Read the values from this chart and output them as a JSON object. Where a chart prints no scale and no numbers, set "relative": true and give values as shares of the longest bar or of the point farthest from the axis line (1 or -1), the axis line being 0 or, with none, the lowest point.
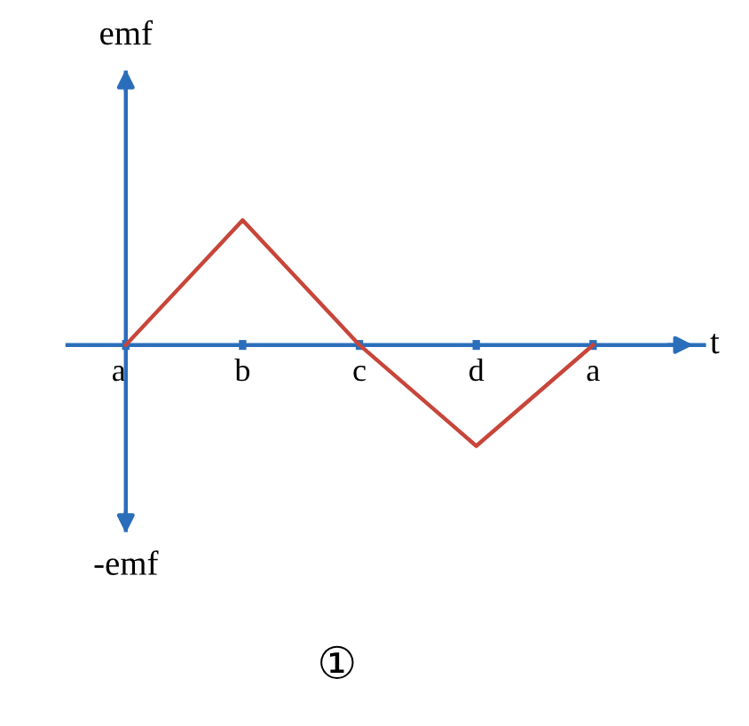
{
  "chart_data": {
    "type": "line",
    "relative": true,
    "categories": [
      "a",
      "b",
      "c",
      "d",
      "a"
    ],
    "series": [
      {
        "color": "#c8453a",
        "values": [
          0,
          1,
          0,
          -0.81,
          0
        ]
      }
    ],
    "xlabel": "t",
    "annotations": [
      "emf",
      "-emf",
      "①"
    ],
    "ref_lines": [
      {
        "axis": "x",
        "value": "a",
        "color": "#2a6ebb",
        "line_style": "solid"
      }
    ],
    "marker": "none",
    "line_style": "solid",
    "grid": false,
    "legend": false
  }
}
